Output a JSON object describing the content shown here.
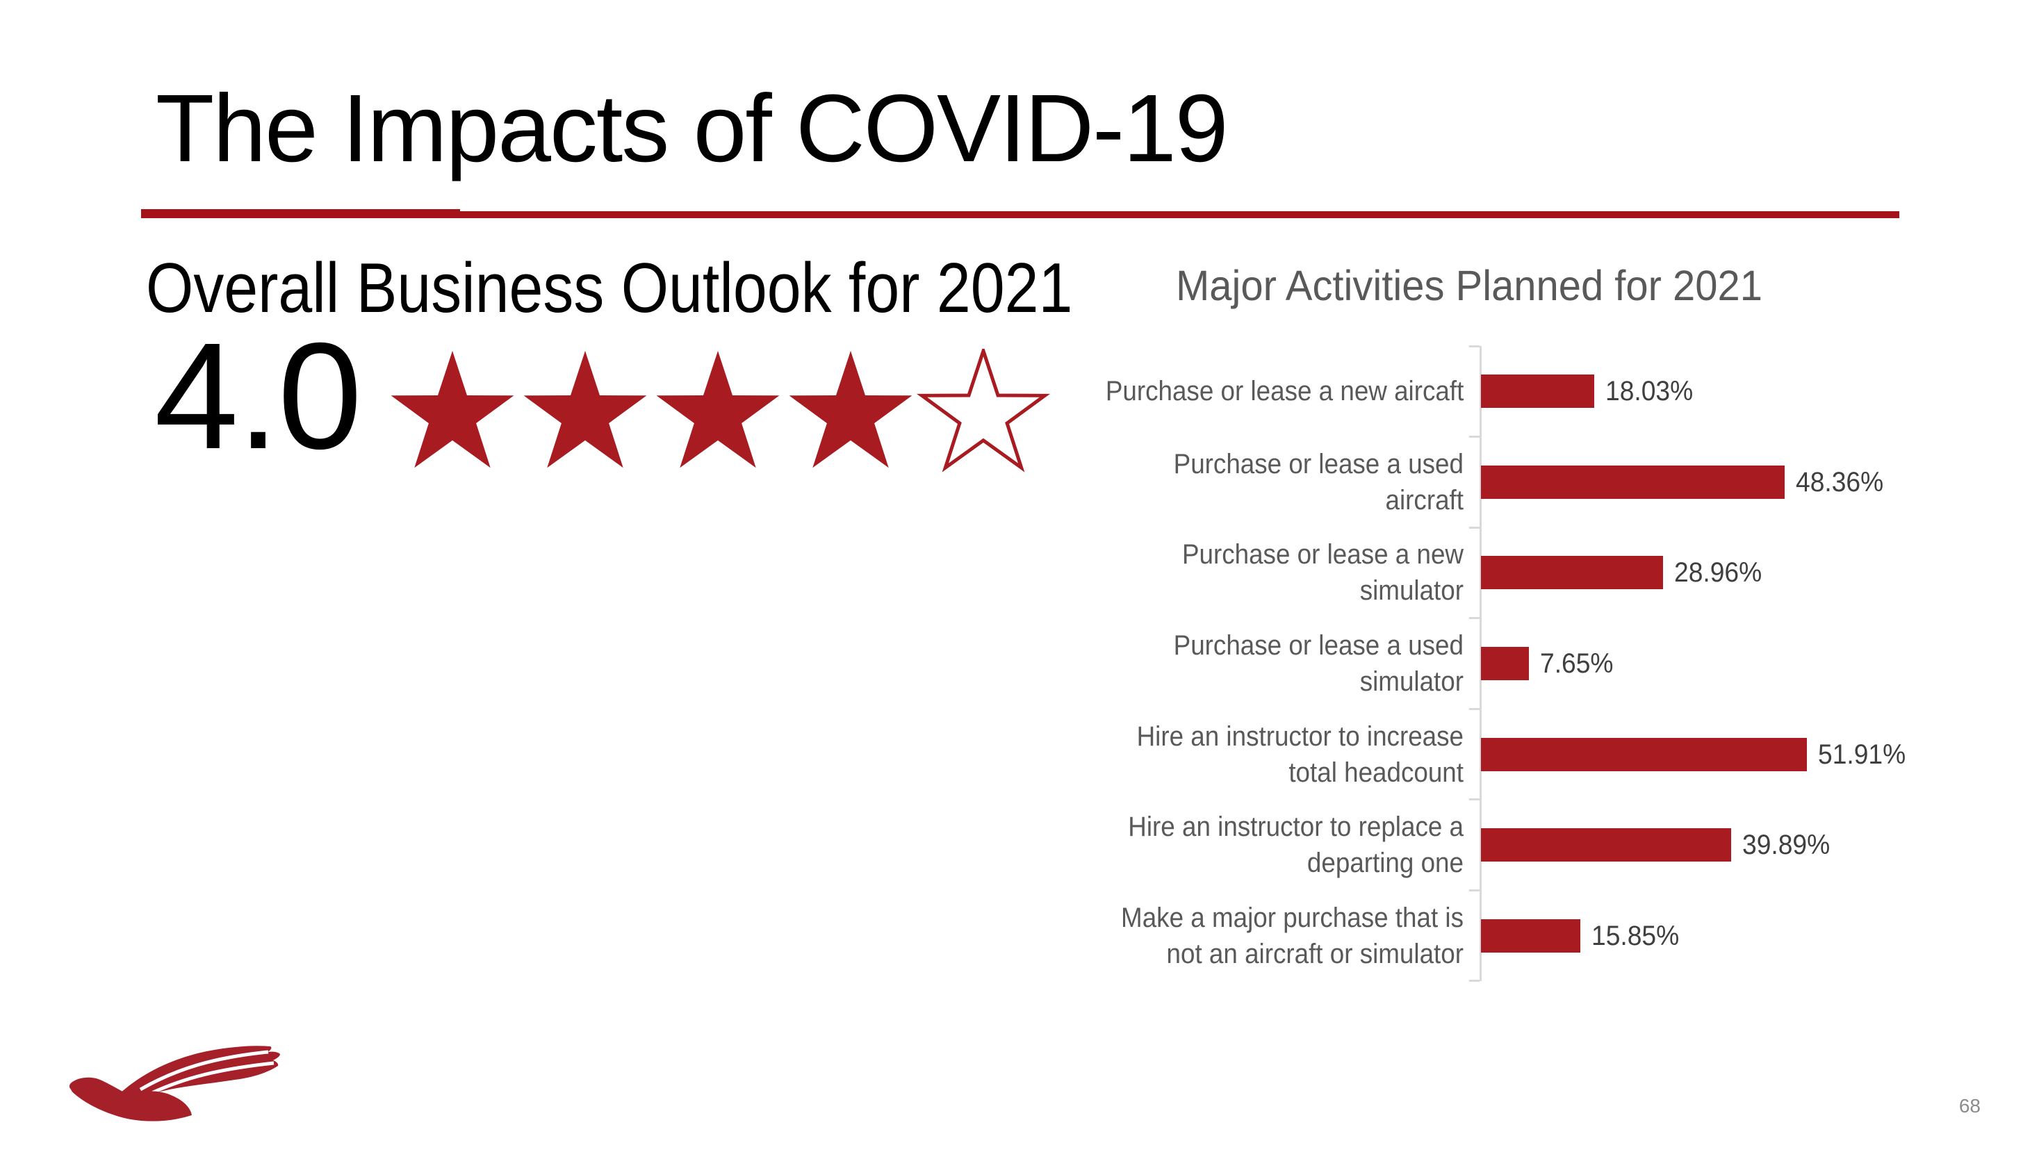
{
  "slide": {
    "title": "The Impacts of COVID-19",
    "page_number": "68"
  },
  "colors": {
    "line_red": "#a5121a",
    "bar_red": "#a81b21",
    "star_red": "#a81b21",
    "logo_red": "#a52028",
    "label_gray": "#595959",
    "value_gray": "#3f3f3f",
    "axis_gray": "#d9d9d9",
    "page_gray": "#8c8c8c",
    "text_black": "#000000"
  },
  "outlook": {
    "heading": "Overall Business Outlook for 2021",
    "rating_value": "4.0",
    "stars_filled": 4,
    "stars_total": 5
  },
  "icons": [
    "star-icon",
    "star-outline-icon",
    "bird-logo-icon"
  ],
  "chart_data": {
    "type": "bar",
    "orientation": "horizontal",
    "title": "Major Activities Planned for 2021",
    "categories": [
      "Purchase or lease a new aircaft",
      "Purchase or lease a used aircraft",
      "Purchase or lease a new simulator",
      "Purchase or lease a used simulator",
      "Hire an instructor to increase total headcount",
      "Hire an instructor to replace a departing one",
      "Make a major purchase that is not an aircraft or simulator"
    ],
    "values": [
      18.03,
      48.36,
      28.96,
      7.65,
      51.91,
      39.89,
      15.85
    ],
    "value_labels": [
      "18.03%",
      "48.36%",
      "28.96%",
      "7.65%",
      "51.91%",
      "39.89%",
      "15.85%"
    ],
    "xlabel": "",
    "ylabel": "",
    "xlim": [
      0,
      55
    ],
    "grid": false,
    "legend": false,
    "data_labels_position": "outside-end"
  }
}
